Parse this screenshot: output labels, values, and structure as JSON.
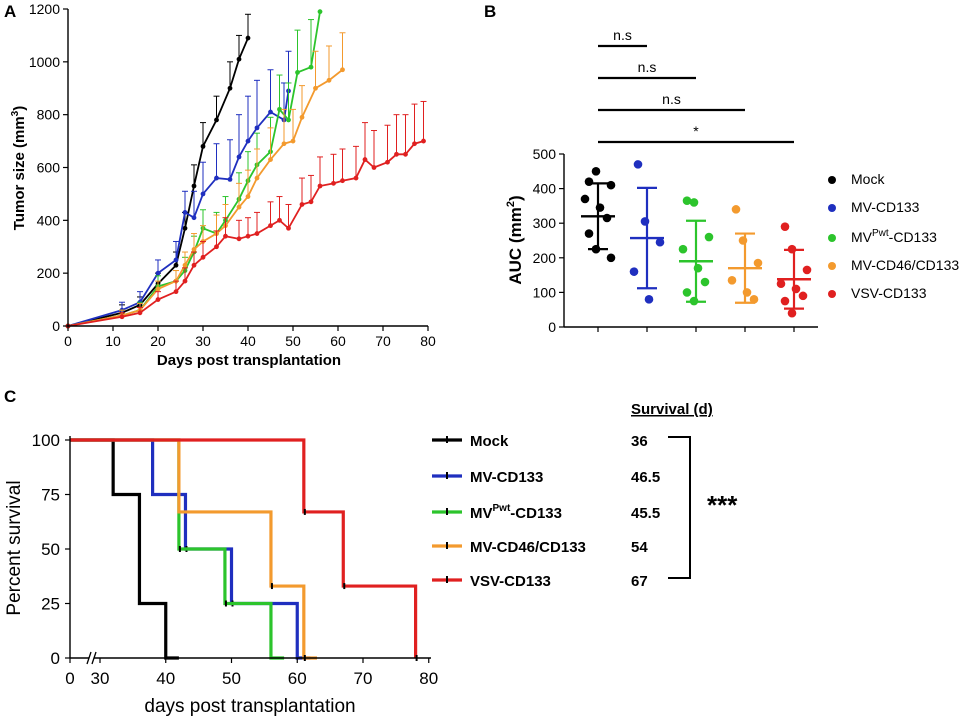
{
  "panels": {
    "a": "A",
    "b": "B",
    "c": "C"
  },
  "chart_data": [
    {
      "type": "line",
      "panel": "A",
      "xlabel": "Days post transplantation",
      "ylabel_main": "Tumor size (mm",
      "ylabel_sup": "3",
      "ylabel_end": ")",
      "xlim": [
        0,
        80
      ],
      "ylim": [
        0,
        1200
      ],
      "xticks": [
        0,
        10,
        20,
        30,
        40,
        50,
        60,
        70,
        80
      ],
      "yticks": [
        0,
        200,
        400,
        600,
        800,
        1000,
        1200
      ],
      "series": [
        {
          "name": "Mock",
          "color": "#000000",
          "x": [
            0,
            12,
            16,
            20,
            24,
            26,
            28,
            30,
            33,
            36,
            38,
            40
          ],
          "y": [
            0,
            50,
            80,
            160,
            230,
            370,
            530,
            680,
            780,
            900,
            1010,
            1090
          ],
          "err": [
            0,
            30,
            30,
            40,
            50,
            60,
            80,
            90,
            90,
            100,
            90,
            90
          ]
        },
        {
          "name": "MV-CD133",
          "color": "#1f2fbf",
          "x": [
            0,
            12,
            16,
            20,
            24,
            26,
            28,
            30,
            33,
            36,
            38,
            40,
            42,
            45,
            48,
            49
          ],
          "y": [
            0,
            60,
            90,
            200,
            250,
            430,
            410,
            500,
            560,
            555,
            640,
            700,
            750,
            810,
            780,
            890
          ],
          "err": [
            0,
            30,
            40,
            50,
            70,
            80,
            100,
            120,
            130,
            150,
            160,
            170,
            180,
            160,
            140,
            150
          ]
        },
        {
          "name": "MVPwt-CD133",
          "color": "#2cc42c",
          "x": [
            0,
            12,
            16,
            20,
            24,
            26,
            28,
            30,
            33,
            35,
            38,
            40,
            42,
            45,
            47,
            49,
            51,
            54,
            56
          ],
          "y": [
            0,
            40,
            60,
            150,
            170,
            210,
            280,
            370,
            350,
            400,
            480,
            550,
            610,
            660,
            820,
            780,
            960,
            980,
            1190
          ],
          "err": [
            0,
            20,
            30,
            40,
            40,
            50,
            60,
            70,
            80,
            90,
            100,
            110,
            120,
            130,
            130,
            140,
            160,
            180,
            0
          ]
        },
        {
          "name": "MV-CD46/CD133",
          "color": "#f39a2e",
          "x": [
            0,
            12,
            16,
            20,
            24,
            26,
            28,
            30,
            33,
            35,
            38,
            40,
            42,
            45,
            48,
            50,
            52,
            55,
            58,
            61
          ],
          "y": [
            0,
            40,
            60,
            140,
            170,
            230,
            290,
            320,
            350,
            380,
            450,
            490,
            560,
            630,
            690,
            700,
            790,
            900,
            930,
            970
          ],
          "err": [
            0,
            20,
            25,
            30,
            40,
            50,
            60,
            60,
            70,
            80,
            90,
            100,
            110,
            120,
            130,
            120,
            120,
            140,
            130,
            140
          ]
        },
        {
          "name": "VSV-CD133",
          "color": "#e02020",
          "x": [
            0,
            12,
            16,
            20,
            24,
            26,
            28,
            30,
            33,
            35,
            38,
            40,
            42,
            45,
            47,
            49,
            52,
            54,
            56,
            59,
            61,
            64,
            66,
            68,
            71,
            73,
            75,
            77,
            79
          ],
          "y": [
            0,
            35,
            50,
            100,
            130,
            170,
            230,
            260,
            300,
            340,
            330,
            340,
            350,
            380,
            400,
            370,
            460,
            470,
            530,
            540,
            550,
            560,
            630,
            600,
            620,
            650,
            650,
            690,
            700
          ],
          "err": [
            0,
            15,
            20,
            30,
            40,
            50,
            50,
            60,
            60,
            70,
            70,
            70,
            80,
            90,
            90,
            90,
            100,
            100,
            110,
            110,
            120,
            120,
            140,
            140,
            140,
            150,
            150,
            150,
            150
          ]
        }
      ]
    },
    {
      "type": "scatter",
      "panel": "B",
      "ylabel_main": "AUC (mm",
      "ylabel_sup": "2",
      "ylabel_end": ")",
      "ylim": [
        0,
        500
      ],
      "yticks": [
        0,
        100,
        200,
        300,
        400,
        500
      ],
      "groups": [
        {
          "name": "Mock",
          "color": "#000000",
          "mean": 320,
          "sd": 95,
          "points": [
            420,
            450,
            410,
            370,
            345,
            315,
            270,
            225,
            200
          ]
        },
        {
          "name": "MV-CD133",
          "color": "#1f2fbf",
          "mean": 257,
          "sd": 145,
          "points": [
            470,
            305,
            245,
            160,
            80
          ]
        },
        {
          "name": "MVPwt-CD133",
          "color": "#2cc42c",
          "mean": 190,
          "sd": 117,
          "points": [
            365,
            360,
            260,
            225,
            170,
            130,
            100,
            75
          ]
        },
        {
          "name": "MV-CD46/CD133",
          "color": "#f39a2e",
          "mean": 170,
          "sd": 100,
          "points": [
            340,
            250,
            185,
            135,
            100,
            80
          ]
        },
        {
          "name": "VSV-CD133",
          "color": "#e02020",
          "mean": 138,
          "sd": 85,
          "points": [
            290,
            225,
            165,
            125,
            110,
            90,
            75,
            40
          ]
        }
      ],
      "legend": [
        {
          "main": "Mock",
          "sup": "",
          "rest": ""
        },
        {
          "main": "MV-CD133",
          "sup": "",
          "rest": ""
        },
        {
          "main": "MV",
          "sup": "Pwt",
          "rest": "-CD133"
        },
        {
          "main": "MV-CD46/CD133",
          "sup": "",
          "rest": ""
        },
        {
          "main": "VSV-CD133",
          "sup": "",
          "rest": ""
        }
      ],
      "comparisons": [
        {
          "from": 0,
          "to": 1,
          "label": "n.s"
        },
        {
          "from": 0,
          "to": 2,
          "label": "n.s"
        },
        {
          "from": 0,
          "to": 3,
          "label": "n.s"
        },
        {
          "from": 0,
          "to": 4,
          "label": "*"
        }
      ]
    },
    {
      "type": "line",
      "subtype": "kaplan-meier",
      "panel": "C",
      "xlabel": "days post transplantation",
      "ylabel": "Percent survival",
      "xlim": [
        0,
        80
      ],
      "ylim": [
        0,
        100
      ],
      "xticks": [
        0,
        30,
        40,
        50,
        60,
        70,
        80
      ],
      "yticks": [
        0,
        25,
        50,
        75,
        100
      ],
      "survival_header": "Survival (d)",
      "significance": "***",
      "series": [
        {
          "name_main": "Mock",
          "name_sup": "",
          "name_rest": "",
          "color": "#000000",
          "median": "36",
          "steps": [
            [
              0,
              100
            ],
            [
              32,
              100
            ],
            [
              32,
              75
            ],
            [
              36,
              75
            ],
            [
              36,
              25
            ],
            [
              40,
              25
            ],
            [
              40,
              0
            ],
            [
              42,
              0
            ]
          ],
          "censor": []
        },
        {
          "name_main": "MV-CD133",
          "name_sup": "",
          "name_rest": "",
          "color": "#1f2fbf",
          "median": "46.5",
          "steps": [
            [
              0,
              100
            ],
            [
              38,
              100
            ],
            [
              38,
              75
            ],
            [
              43,
              75
            ],
            [
              43,
              50
            ],
            [
              50,
              50
            ],
            [
              50,
              25
            ],
            [
              60,
              25
            ],
            [
              60,
              0
            ],
            [
              62,
              0
            ]
          ],
          "censor": [
            [
              43,
              50
            ],
            [
              50,
              25
            ]
          ]
        },
        {
          "name_main": "MV",
          "name_sup": "Pwt",
          "name_rest": "-CD133",
          "color": "#2cc42c",
          "median": "45.5",
          "steps": [
            [
              0,
              100
            ],
            [
              42,
              100
            ],
            [
              42,
              50
            ],
            [
              49,
              50
            ],
            [
              49,
              25
            ],
            [
              56,
              25
            ],
            [
              56,
              0
            ],
            [
              58,
              0
            ]
          ],
          "censor": [
            [
              42,
              50
            ],
            [
              49,
              25
            ]
          ]
        },
        {
          "name_main": "MV-CD46/CD133",
          "name_sup": "",
          "name_rest": "",
          "color": "#f39a2e",
          "median": "54",
          "steps": [
            [
              0,
              100
            ],
            [
              42,
              100
            ],
            [
              42,
              67
            ],
            [
              56,
              67
            ],
            [
              56,
              33
            ],
            [
              61,
              33
            ],
            [
              61,
              0
            ],
            [
              63,
              0
            ]
          ],
          "censor": [
            [
              56,
              33
            ],
            [
              61,
              0
            ]
          ]
        },
        {
          "name_main": "VSV-CD133",
          "name_sup": "",
          "name_rest": "",
          "color": "#e02020",
          "median": "67",
          "steps": [
            [
              0,
              100
            ],
            [
              61,
              100
            ],
            [
              61,
              67
            ],
            [
              67,
              67
            ],
            [
              67,
              33
            ],
            [
              78,
              33
            ],
            [
              78,
              0
            ]
          ],
          "censor": [
            [
              61,
              67
            ],
            [
              67,
              33
            ],
            [
              78,
              0
            ]
          ]
        }
      ]
    }
  ]
}
